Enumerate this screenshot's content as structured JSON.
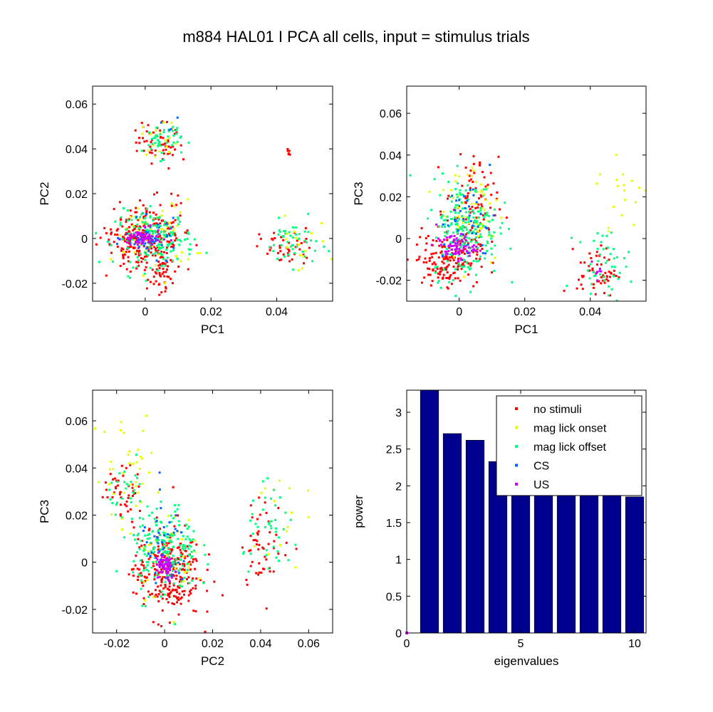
{
  "figure": {
    "title": "m884 HAL01 I PCA all cells, input = stimulus trials"
  },
  "colors": {
    "no stimuli": "#ff0000",
    "mag lick  onset": "#e6ff00",
    "mag lick  offset": "#00ff80",
    "CS": "#0066ff",
    "US": "#cc00ff",
    "bar": "#00008f"
  },
  "chart_data": [
    {
      "type": "scatter",
      "id": "pc1_pc2",
      "xlabel": "PC1",
      "ylabel": "PC2",
      "xlim": [
        -0.016,
        0.057
      ],
      "ylim": [
        -0.028,
        0.068
      ],
      "xticks": [
        0,
        0.02,
        0.04
      ],
      "xtick_labels": [
        "0",
        "0.02",
        "0.04"
      ],
      "yticks": [
        -0.02,
        0,
        0.02,
        0.04,
        0.06
      ],
      "ytick_labels": [
        "-0.02",
        "0",
        "0.02",
        "0.04",
        "0.06"
      ],
      "clusters": [
        {
          "series": "no stimuli",
          "center": [
            0.0,
            0.0
          ],
          "spread": [
            0.006,
            0.007
          ],
          "n": 260
        },
        {
          "series": "no stimuli",
          "center": [
            0.004,
            0.043
          ],
          "spread": [
            0.004,
            0.005
          ],
          "n": 55
        },
        {
          "series": "no stimuli",
          "center": [
            0.005,
            -0.016
          ],
          "spread": [
            0.003,
            0.004
          ],
          "n": 40
        },
        {
          "series": "no stimuli",
          "center": [
            0.043,
            -0.004
          ],
          "spread": [
            0.004,
            0.004
          ],
          "n": 45
        },
        {
          "series": "no stimuli",
          "center": [
            0.044,
            0.038
          ],
          "spread": [
            0.001,
            0.001
          ],
          "n": 6
        },
        {
          "series": "mag lick  onset",
          "center": [
            0.003,
            0.001
          ],
          "spread": [
            0.006,
            0.008
          ],
          "n": 60
        },
        {
          "series": "mag lick  onset",
          "center": [
            0.005,
            0.045
          ],
          "spread": [
            0.003,
            0.004
          ],
          "n": 20
        },
        {
          "series": "mag lick  onset",
          "center": [
            0.046,
            -0.003
          ],
          "spread": [
            0.005,
            0.006
          ],
          "n": 20
        },
        {
          "series": "mag lick  offset",
          "center": [
            0.003,
            0.0
          ],
          "spread": [
            0.006,
            0.006
          ],
          "n": 170
        },
        {
          "series": "mag lick  offset",
          "center": [
            0.005,
            0.044
          ],
          "spread": [
            0.003,
            0.004
          ],
          "n": 45
        },
        {
          "series": "mag lick  offset",
          "center": [
            0.045,
            -0.002
          ],
          "spread": [
            0.004,
            0.005
          ],
          "n": 45
        },
        {
          "series": "CS",
          "center": [
            0.002,
            0.0
          ],
          "spread": [
            0.004,
            0.004
          ],
          "n": 45
        },
        {
          "series": "CS",
          "center": [
            0.008,
            0.05
          ],
          "spread": [
            0.002,
            0.004
          ],
          "n": 4
        },
        {
          "series": "US",
          "center": [
            -0.001,
            0.0
          ],
          "spread": [
            0.003,
            0.002
          ],
          "n": 70
        }
      ]
    },
    {
      "type": "scatter",
      "id": "pc1_pc3",
      "xlabel": "PC1",
      "ylabel": "PC3",
      "xlim": [
        -0.016,
        0.057
      ],
      "ylim": [
        -0.03,
        0.073
      ],
      "xticks": [
        0,
        0.02,
        0.04
      ],
      "xtick_labels": [
        "0",
        "0.02",
        "0.04"
      ],
      "yticks": [
        -0.02,
        0,
        0.02,
        0.04,
        0.06
      ],
      "ytick_labels": [
        "-0.02",
        "0",
        "0.02",
        "0.04",
        "0.06"
      ],
      "clusters": [
        {
          "series": "no stimuli",
          "center": [
            -0.004,
            -0.01
          ],
          "spread": [
            0.005,
            0.006
          ],
          "n": 170
        },
        {
          "series": "no stimuli",
          "center": [
            0.004,
            0.015
          ],
          "spread": [
            0.004,
            0.012
          ],
          "n": 90
        },
        {
          "series": "no stimuli",
          "center": [
            0.042,
            -0.016
          ],
          "spread": [
            0.003,
            0.006
          ],
          "n": 55
        },
        {
          "series": "mag lick  onset",
          "center": [
            0.004,
            0.015
          ],
          "spread": [
            0.005,
            0.014
          ],
          "n": 60
        },
        {
          "series": "mag lick  onset",
          "center": [
            0.05,
            0.02
          ],
          "spread": [
            0.004,
            0.012
          ],
          "n": 18
        },
        {
          "series": "mag lick  offset",
          "center": [
            0.002,
            0.005
          ],
          "spread": [
            0.005,
            0.012
          ],
          "n": 210
        },
        {
          "series": "mag lick  offset",
          "center": [
            0.044,
            -0.012
          ],
          "spread": [
            0.004,
            0.008
          ],
          "n": 45
        },
        {
          "series": "CS",
          "center": [
            0.003,
            0.008
          ],
          "spread": [
            0.004,
            0.01
          ],
          "n": 40
        },
        {
          "series": "US",
          "center": [
            -0.001,
            -0.004
          ],
          "spread": [
            0.003,
            0.003
          ],
          "n": 70
        },
        {
          "series": "US",
          "center": [
            0.042,
            -0.015
          ],
          "spread": [
            0.001,
            0.002
          ],
          "n": 8
        }
      ]
    },
    {
      "type": "scatter",
      "id": "pc2_pc3",
      "xlabel": "PC2",
      "ylabel": "PC3",
      "xlim": [
        -0.03,
        0.07
      ],
      "ylim": [
        -0.03,
        0.073
      ],
      "xticks": [
        -0.02,
        0,
        0.02,
        0.04,
        0.06
      ],
      "xtick_labels": [
        "-0.02",
        "0",
        "0.02",
        "0.04",
        "0.06"
      ],
      "yticks": [
        -0.02,
        0,
        0.02,
        0.04,
        0.06
      ],
      "ytick_labels": [
        "-0.02",
        "0",
        "0.02",
        "0.04",
        "0.06"
      ],
      "clusters": [
        {
          "series": "no stimuli",
          "center": [
            0.001,
            -0.004
          ],
          "spread": [
            0.007,
            0.01
          ],
          "n": 270
        },
        {
          "series": "no stimuli",
          "center": [
            -0.017,
            0.03
          ],
          "spread": [
            0.004,
            0.005
          ],
          "n": 45
        },
        {
          "series": "no stimuli",
          "center": [
            0.042,
            0.008
          ],
          "spread": [
            0.005,
            0.009
          ],
          "n": 50
        },
        {
          "series": "mag lick  onset",
          "center": [
            -0.015,
            0.04
          ],
          "spread": [
            0.007,
            0.012
          ],
          "n": 35
        },
        {
          "series": "mag lick  onset",
          "center": [
            0.0,
            0.005
          ],
          "spread": [
            0.006,
            0.01
          ],
          "n": 50
        },
        {
          "series": "mag lick  onset",
          "center": [
            0.045,
            0.02
          ],
          "spread": [
            0.006,
            0.012
          ],
          "n": 15
        },
        {
          "series": "mag lick  offset",
          "center": [
            0.0,
            0.005
          ],
          "spread": [
            0.007,
            0.01
          ],
          "n": 190
        },
        {
          "series": "mag lick  offset",
          "center": [
            -0.015,
            0.032
          ],
          "spread": [
            0.004,
            0.005
          ],
          "n": 25
        },
        {
          "series": "mag lick  offset",
          "center": [
            0.045,
            0.012
          ],
          "spread": [
            0.006,
            0.009
          ],
          "n": 40
        },
        {
          "series": "CS",
          "center": [
            0.0,
            0.005
          ],
          "spread": [
            0.005,
            0.01
          ],
          "n": 40
        },
        {
          "series": "US",
          "center": [
            0.0,
            -0.002
          ],
          "spread": [
            0.002,
            0.003
          ],
          "n": 70
        }
      ]
    },
    {
      "type": "bar",
      "id": "eigenvalues",
      "xlabel": "eigenvalues",
      "ylabel": "power",
      "xlim": [
        0,
        10.5
      ],
      "ylim": [
        0,
        3.3
      ],
      "xticks": [
        0,
        5,
        10
      ],
      "xtick_labels": [
        "0",
        "5",
        "10"
      ],
      "yticks": [
        0,
        0.5,
        1,
        1.5,
        2,
        2.5,
        3
      ],
      "ytick_labels": [
        "0",
        "0.5",
        "1",
        "1.5",
        "2",
        "2.5",
        "3"
      ],
      "categories": [
        1,
        2,
        3,
        4,
        5,
        6,
        7,
        8,
        9,
        10
      ],
      "values": [
        3.35,
        2.71,
        2.62,
        2.33,
        2.2,
        2.1,
        2.0,
        1.95,
        1.88,
        1.85
      ],
      "legend_position": "top-right",
      "legend": [
        "no stimuli",
        "mag lick  onset",
        "mag lick  offset",
        "CS",
        "US"
      ]
    }
  ]
}
